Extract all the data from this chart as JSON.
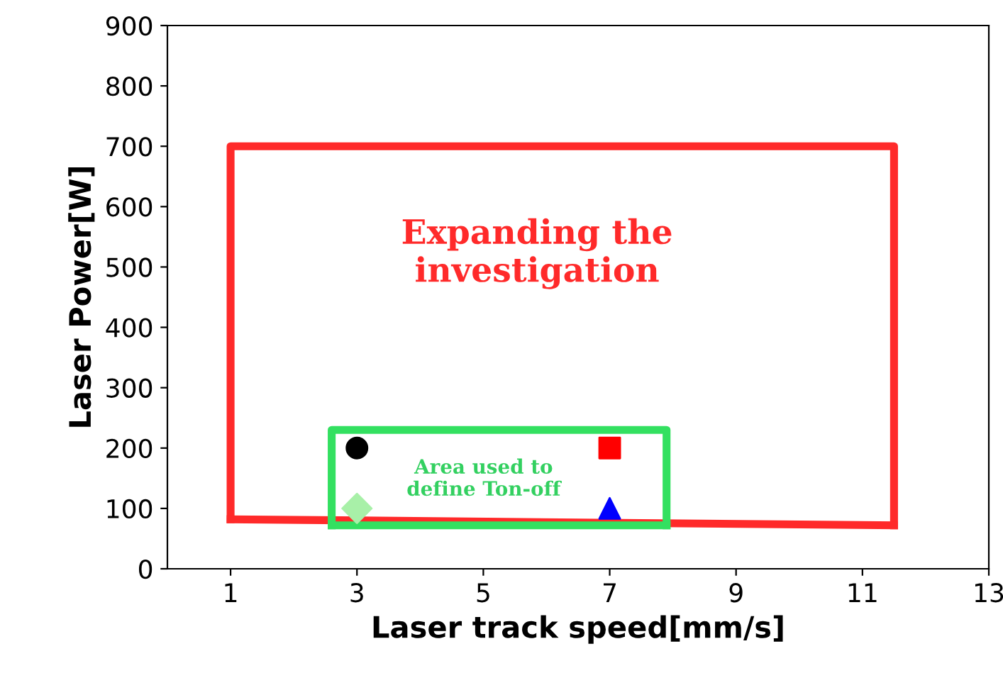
{
  "chart_data": {
    "type": "scatter",
    "xlabel": "Laser track speed[mm/s]",
    "ylabel": "Laser Power[W]",
    "xlim": [
      0,
      13
    ],
    "xticks": [
      1,
      3,
      5,
      7,
      9,
      11,
      13
    ],
    "ylim": [
      0,
      900
    ],
    "yticks": [
      0,
      100,
      200,
      300,
      400,
      500,
      600,
      700,
      800,
      900
    ],
    "grid": false,
    "legend": false,
    "series": [
      {
        "type": "line",
        "color": "#ff2a2a",
        "x": [
          1,
          1,
          11.5,
          11.5
        ],
        "values": [
          82,
          700,
          700,
          72
        ],
        "marker": "none",
        "line_style": "solid"
      },
      {
        "type": "line",
        "color": "#ff2a2a",
        "x": [
          1,
          11.5
        ],
        "values": [
          82,
          72
        ],
        "marker": "none",
        "line_style": "solid"
      },
      {
        "type": "line",
        "color": "#33e060",
        "x": [
          2.6,
          2.6,
          7.9,
          7.9
        ],
        "values": [
          72,
          230,
          230,
          72
        ],
        "marker": "none",
        "line_style": "solid"
      },
      {
        "type": "line",
        "color": "#33e060",
        "x": [
          2.6,
          7.9
        ],
        "values": [
          72,
          72
        ],
        "marker": "none",
        "line_style": "solid"
      },
      {
        "color": "#000000",
        "x": [
          3
        ],
        "values": [
          200
        ],
        "marker": "circle"
      },
      {
        "color": "#ff0000",
        "x": [
          7
        ],
        "values": [
          200
        ],
        "marker": "square"
      },
      {
        "color": "#a8f0a8",
        "x": [
          3
        ],
        "values": [
          100
        ],
        "marker": "diamond"
      },
      {
        "color": "#0000ff",
        "x": [
          7
        ],
        "values": [
          100
        ],
        "marker": "triangle"
      }
    ],
    "annotations": [
      "Expanding the\ninvestigation",
      "Area used to\ndefine Ton-off"
    ]
  }
}
